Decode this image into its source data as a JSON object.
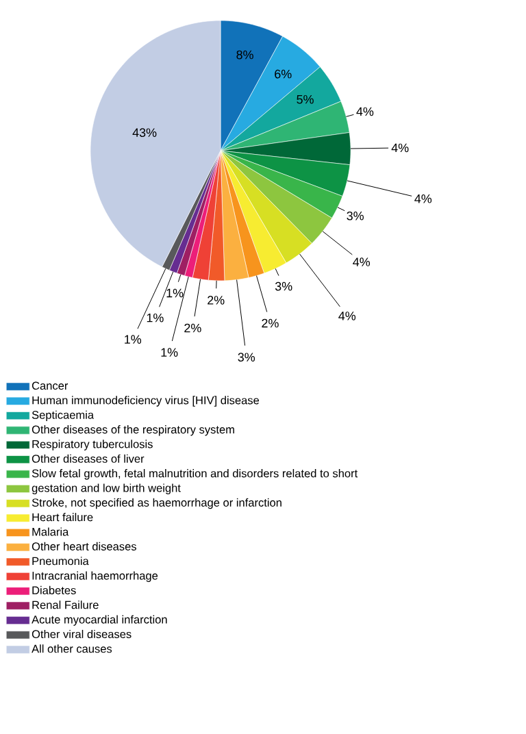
{
  "chart_data": {
    "type": "pie",
    "categories": [
      "Cancer",
      "Human immunodeficiency virus [HIV] disease",
      "Septicaemia",
      "Other diseases of the respiratory system",
      "Respiratory tuberculosis",
      "Other diseases of liver",
      "Slow fetal growth, fetal malnutrition and disorders related to short",
      "gestation and low birth weight",
      "Stroke, not specified as haemorrhage or infarction",
      "Heart failure",
      "Malaria",
      "Other heart diseases",
      "Pneumonia",
      "Intracranial haemorrhage",
      "Diabetes",
      "Renal Failure",
      "Acute myocardial infarction",
      "Other viral diseases",
      "All other causes"
    ],
    "values": [
      8,
      6,
      5,
      4,
      4,
      4,
      3,
      4,
      4,
      3,
      2,
      3,
      2,
      2,
      1,
      1,
      1,
      1,
      43
    ],
    "value_labels": [
      "8%",
      "6%",
      "5%",
      "4%",
      "4%",
      "4%",
      "3%",
      "4%",
      "4%",
      "3%",
      "2%",
      "3%",
      "2%",
      "2%",
      "1%",
      "1%",
      "1%",
      "1%",
      "43%"
    ],
    "colors": [
      "#1172b9",
      "#27aae1",
      "#13a89e",
      "#2fb574",
      "#006838",
      "#0d9345",
      "#39b54a",
      "#8dc63f",
      "#d7df23",
      "#f7ec31",
      "#f7941d",
      "#fbb040",
      "#f15a29",
      "#ef4136",
      "#ec1e79",
      "#9e1f63",
      "#662d91",
      "#58595b",
      "#c2cde4"
    ],
    "legend": "bottom"
  }
}
